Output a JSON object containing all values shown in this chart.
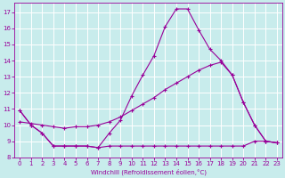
{
  "xlabel": "Windchill (Refroidissement éolien,°C)",
  "bg_color": "#c8ecec",
  "line_color": "#990099",
  "grid_color": "#ffffff",
  "xlim": [
    -0.5,
    23.5
  ],
  "ylim": [
    8,
    17.6
  ],
  "yticks": [
    8,
    9,
    10,
    11,
    12,
    13,
    14,
    15,
    16,
    17
  ],
  "xticks": [
    0,
    1,
    2,
    3,
    4,
    5,
    6,
    7,
    8,
    9,
    10,
    11,
    12,
    13,
    14,
    15,
    16,
    17,
    18,
    19,
    20,
    21,
    22,
    23
  ],
  "line_peak_x": [
    0,
    1,
    2,
    3,
    4,
    5,
    6,
    7,
    8,
    9,
    10,
    11,
    12,
    13,
    14,
    15,
    16,
    17,
    18,
    19,
    20,
    21,
    22,
    23
  ],
  "line_peak_y": [
    10.9,
    10.0,
    9.5,
    8.7,
    8.7,
    8.7,
    8.7,
    8.6,
    9.5,
    10.3,
    11.8,
    13.1,
    14.3,
    16.1,
    17.2,
    17.2,
    15.9,
    14.7,
    14.0,
    13.1,
    11.4,
    10.0,
    9.0,
    8.9
  ],
  "line_diag_x": [
    0,
    1,
    2,
    3,
    4,
    5,
    6,
    7,
    8,
    9,
    10,
    11,
    12,
    13,
    14,
    15,
    16,
    17,
    18,
    19,
    20,
    21,
    22,
    23
  ],
  "line_diag_y": [
    10.2,
    10.1,
    10.0,
    9.9,
    9.8,
    9.9,
    9.9,
    10.0,
    10.2,
    10.5,
    10.9,
    11.3,
    11.7,
    12.2,
    12.6,
    13.0,
    13.4,
    13.7,
    13.9,
    13.1,
    11.4,
    10.0,
    9.0,
    8.9
  ],
  "line_flat_x": [
    0,
    1,
    2,
    3,
    4,
    5,
    6,
    7,
    8,
    9,
    10,
    11,
    12,
    13,
    14,
    15,
    16,
    17,
    18,
    19,
    20,
    21,
    22,
    23
  ],
  "line_flat_y": [
    10.9,
    10.0,
    9.5,
    8.7,
    8.7,
    8.7,
    8.7,
    8.6,
    8.7,
    8.7,
    8.7,
    8.7,
    8.7,
    8.7,
    8.7,
    8.7,
    8.7,
    8.7,
    8.7,
    8.7,
    8.7,
    9.0,
    9.0,
    8.9
  ]
}
